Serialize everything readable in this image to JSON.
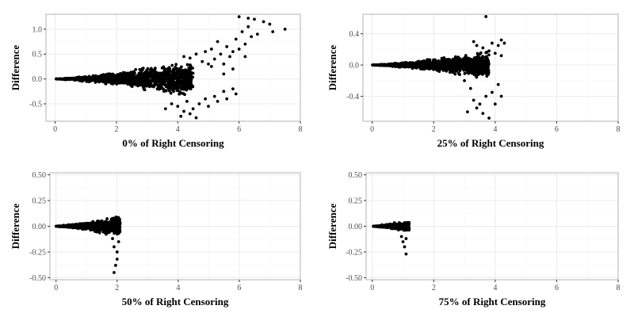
{
  "chart_data": [
    {
      "type": "scatter",
      "xlabel": "0% of Right Censoring",
      "ylabel": "Difference",
      "xlim": [
        -0.3,
        8.0
      ],
      "ylim": [
        -0.85,
        1.3
      ],
      "x_ticks": [
        0,
        2,
        4,
        6,
        8
      ],
      "y_ticks": [
        -0.5,
        0.0,
        0.5,
        1.0
      ],
      "y_tick_labels": [
        "-0.5",
        "0.0",
        "0.5",
        "1.0"
      ],
      "grid": true,
      "cloud": {
        "x_max": 4.5,
        "spread_per_x": 0.06,
        "count": 1300
      },
      "points": [
        [
          4.2,
          0.45
        ],
        [
          4.4,
          0.42
        ],
        [
          4.6,
          0.5
        ],
        [
          4.8,
          0.35
        ],
        [
          4.9,
          0.55
        ],
        [
          5.0,
          0.3
        ],
        [
          5.1,
          0.6
        ],
        [
          5.2,
          0.4
        ],
        [
          5.3,
          0.75
        ],
        [
          5.4,
          0.5
        ],
        [
          5.5,
          0.3
        ],
        [
          5.6,
          0.65
        ],
        [
          5.7,
          0.45
        ],
        [
          5.8,
          0.55
        ],
        [
          5.9,
          0.8
        ],
        [
          6.0,
          0.6
        ],
        [
          6.1,
          0.95
        ],
        [
          6.2,
          0.7
        ],
        [
          6.3,
          1.05
        ],
        [
          6.4,
          0.85
        ],
        [
          6.5,
          1.2
        ],
        [
          6.6,
          0.9
        ],
        [
          6.8,
          1.15
        ],
        [
          7.0,
          1.1
        ],
        [
          7.1,
          0.95
        ],
        [
          7.5,
          1.0
        ],
        [
          6.0,
          1.25
        ],
        [
          6.3,
          1.22
        ],
        [
          5.1,
          0.25
        ],
        [
          5.5,
          0.1
        ],
        [
          5.8,
          0.2
        ],
        [
          6.2,
          0.45
        ],
        [
          4.0,
          -0.55
        ],
        [
          4.2,
          -0.65
        ],
        [
          4.3,
          -0.45
        ],
        [
          4.4,
          -0.7
        ],
        [
          4.5,
          -0.6
        ],
        [
          4.6,
          -0.78
        ],
        [
          4.7,
          -0.5
        ],
        [
          4.9,
          -0.4
        ],
        [
          5.0,
          -0.55
        ],
        [
          5.2,
          -0.35
        ],
        [
          5.3,
          -0.45
        ],
        [
          5.5,
          -0.25
        ],
        [
          5.6,
          -0.4
        ],
        [
          5.8,
          -0.2
        ],
        [
          5.9,
          -0.3
        ],
        [
          4.1,
          -0.75
        ],
        [
          3.8,
          -0.5
        ],
        [
          3.6,
          -0.6
        ]
      ]
    },
    {
      "type": "scatter",
      "xlabel": "25% of Right Censoring",
      "ylabel": "Difference",
      "xlim": [
        -0.3,
        8.0
      ],
      "ylim": [
        -0.72,
        0.65
      ],
      "x_ticks": [
        0,
        2,
        4,
        6,
        8
      ],
      "y_ticks": [
        -0.4,
        0.0,
        0.4
      ],
      "y_tick_labels": [
        "-0.4",
        "0.0",
        "0.4"
      ],
      "grid": true,
      "cloud": {
        "x_max": 3.8,
        "spread_per_x": 0.035,
        "count": 1300
      },
      "points": [
        [
          3.7,
          0.62
        ],
        [
          3.3,
          0.3
        ],
        [
          3.4,
          0.25
        ],
        [
          3.6,
          0.22
        ],
        [
          3.8,
          0.18
        ],
        [
          3.9,
          0.28
        ],
        [
          4.0,
          0.15
        ],
        [
          4.1,
          0.25
        ],
        [
          4.2,
          0.32
        ],
        [
          4.3,
          0.28
        ],
        [
          4.2,
          0.12
        ],
        [
          3.2,
          -0.3
        ],
        [
          3.3,
          -0.45
        ],
        [
          3.4,
          -0.55
        ],
        [
          3.5,
          -0.5
        ],
        [
          3.6,
          -0.62
        ],
        [
          3.7,
          -0.4
        ],
        [
          3.8,
          -0.68
        ],
        [
          3.9,
          -0.35
        ],
        [
          4.0,
          -0.5
        ],
        [
          4.1,
          -0.25
        ],
        [
          4.2,
          -0.4
        ],
        [
          3.1,
          -0.6
        ],
        [
          3.0,
          -0.2
        ]
      ]
    },
    {
      "type": "scatter",
      "xlabel": "50% of Right Censoring",
      "ylabel": "Difference",
      "xlim": [
        -0.2,
        8.0
      ],
      "ylim": [
        -0.52,
        0.52
      ],
      "x_ticks": [
        0,
        2,
        4,
        6,
        8
      ],
      "y_ticks": [
        -0.5,
        -0.25,
        0.0,
        0.25,
        0.5
      ],
      "y_tick_labels": [
        "-0.50",
        "-0.25",
        "0.00",
        "0.25",
        "0.50"
      ],
      "grid": true,
      "cloud": {
        "x_max": 2.1,
        "spread_per_x": 0.04,
        "count": 900
      },
      "points": [
        [
          1.9,
          -0.2
        ],
        [
          2.0,
          -0.25
        ],
        [
          2.0,
          -0.32
        ],
        [
          1.95,
          -0.38
        ],
        [
          1.9,
          -0.45
        ],
        [
          2.05,
          -0.15
        ],
        [
          1.85,
          -0.12
        ]
      ]
    },
    {
      "type": "scatter",
      "xlabel": "75% of Right Censoring",
      "ylabel": "Difference",
      "xlim": [
        -0.2,
        8.0
      ],
      "ylim": [
        -0.52,
        0.52
      ],
      "x_ticks": [
        0,
        2,
        4,
        6,
        8
      ],
      "y_ticks": [
        -0.5,
        -0.25,
        0.0,
        0.25,
        0.5
      ],
      "y_tick_labels": [
        "-0.50",
        "-0.25",
        "0.00",
        "0.25",
        "0.50"
      ],
      "grid": true,
      "cloud": {
        "x_max": 1.2,
        "spread_per_x": 0.045,
        "count": 500
      },
      "points": [
        [
          1.0,
          -0.15
        ],
        [
          1.05,
          -0.2
        ],
        [
          1.1,
          -0.27
        ],
        [
          0.95,
          -0.1
        ],
        [
          1.1,
          -0.12
        ]
      ]
    }
  ]
}
